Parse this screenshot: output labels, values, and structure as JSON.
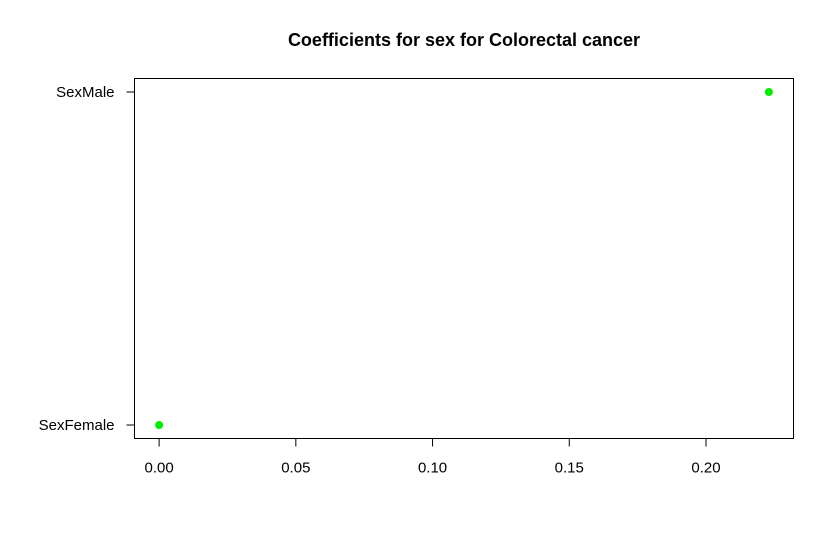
{
  "chart_data": {
    "type": "scatter",
    "title": "Coefficients for sex for Colorectal cancer",
    "xlabel": "",
    "ylabel": "",
    "categories": [
      "SexFemale",
      "SexMale"
    ],
    "points": [
      {
        "label": "SexFemale",
        "x": 0.0
      },
      {
        "label": "SexMale",
        "x": 0.223
      }
    ],
    "x_ticks": [
      {
        "value": 0.0,
        "label": "0.00"
      },
      {
        "value": 0.05,
        "label": "0.05"
      },
      {
        "value": 0.1,
        "label": "0.10"
      },
      {
        "value": 0.15,
        "label": "0.15"
      },
      {
        "value": 0.2,
        "label": "0.20"
      }
    ],
    "xlim": [
      -0.009,
      0.232
    ],
    "grid": false,
    "point_color": "#00ee00"
  }
}
